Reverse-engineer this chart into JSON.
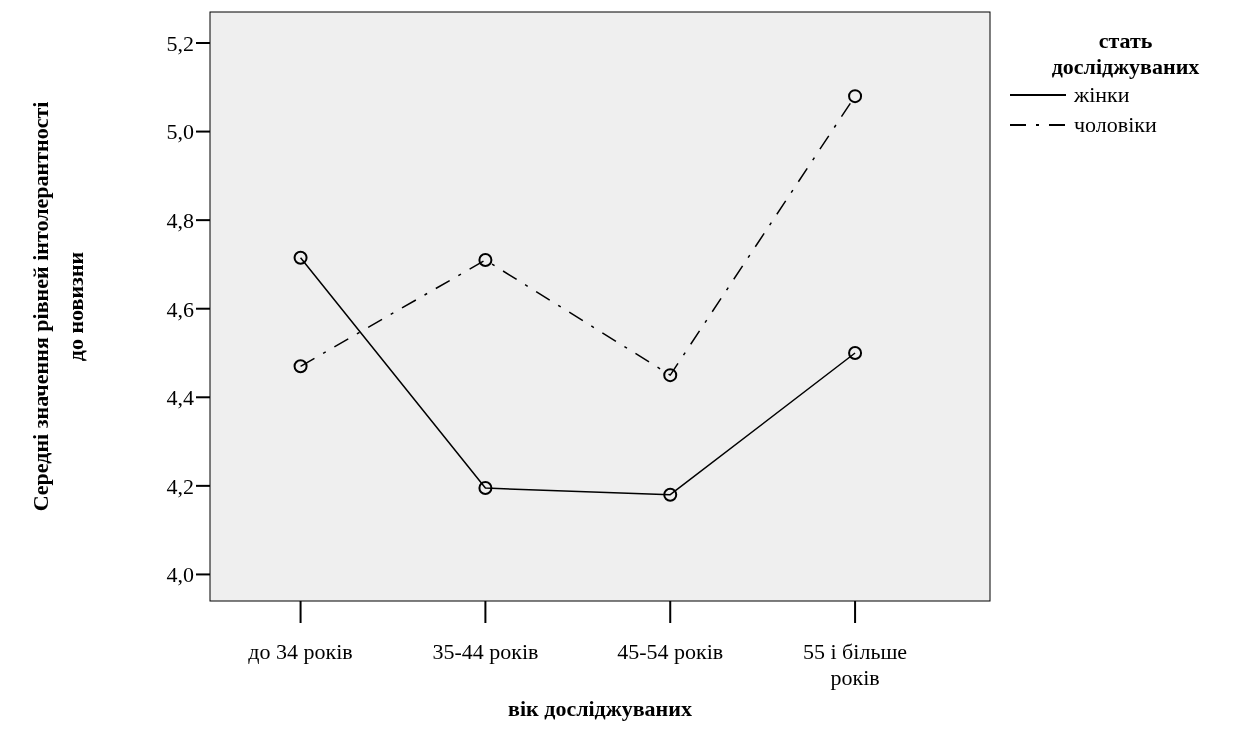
{
  "chart_data": {
    "type": "line",
    "xlabel": "вік досліджуваних",
    "ylabel": "Середні значення рівней інтолерантності до новизни",
    "legend_title": "стать досліджуваних",
    "categories": [
      "до 34 років",
      "35-44 років",
      "45-54 років",
      "55 і більше років"
    ],
    "series": [
      {
        "name": "жінки",
        "color": "#000000",
        "line_style": "solid",
        "values": [
          4.715,
          4.195,
          4.18,
          4.5
        ]
      },
      {
        "name": "чоловіки",
        "color": "#000000",
        "line_style": "dashed",
        "values": [
          4.47,
          4.71,
          4.45,
          5.08
        ]
      }
    ],
    "ylim": [
      3.94,
      5.27
    ],
    "yticks": [
      {
        "value": 4.0,
        "label": "4,0"
      },
      {
        "value": 4.2,
        "label": "4,2"
      },
      {
        "value": 4.4,
        "label": "4,4"
      },
      {
        "value": 4.6,
        "label": "4,6"
      },
      {
        "value": 4.8,
        "label": "4,8"
      },
      {
        "value": 5.0,
        "label": "5,0"
      },
      {
        "value": 5.2,
        "label": "5,2"
      }
    ],
    "grid": false,
    "legend": "top right",
    "marker": "circle"
  }
}
